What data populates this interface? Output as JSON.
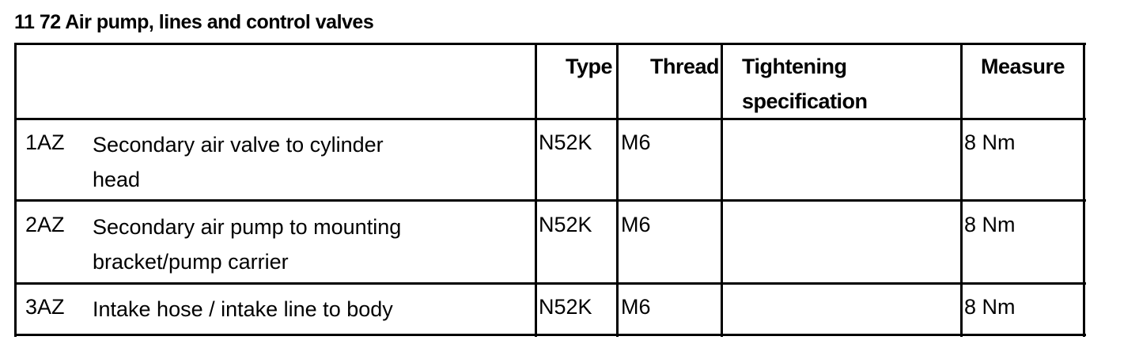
{
  "title": "11 72 Air pump, lines and control valves",
  "table": {
    "headers": {
      "type": "Type",
      "thread": "Thread",
      "tightening_line1": "Tightening",
      "tightening_line2": "specification",
      "measure": "Measure"
    },
    "rows": [
      {
        "id": "1AZ",
        "desc_line1": "Secondary air valve to cylinder",
        "desc_line2": "head",
        "type": "N52K",
        "thread": "M6",
        "tightening": "",
        "measure": "8 Nm"
      },
      {
        "id": "2AZ",
        "desc_line1": "Secondary air pump to mounting",
        "desc_line2": "bracket/pump carrier",
        "type": "N52K",
        "thread": "M6",
        "tightening": "",
        "measure": "8 Nm"
      },
      {
        "id": "3AZ",
        "desc_line1": "Intake hose / intake line to body",
        "desc_line2": "",
        "type": "N52K",
        "thread": "M6",
        "tightening": "",
        "measure": "8 Nm"
      }
    ]
  }
}
